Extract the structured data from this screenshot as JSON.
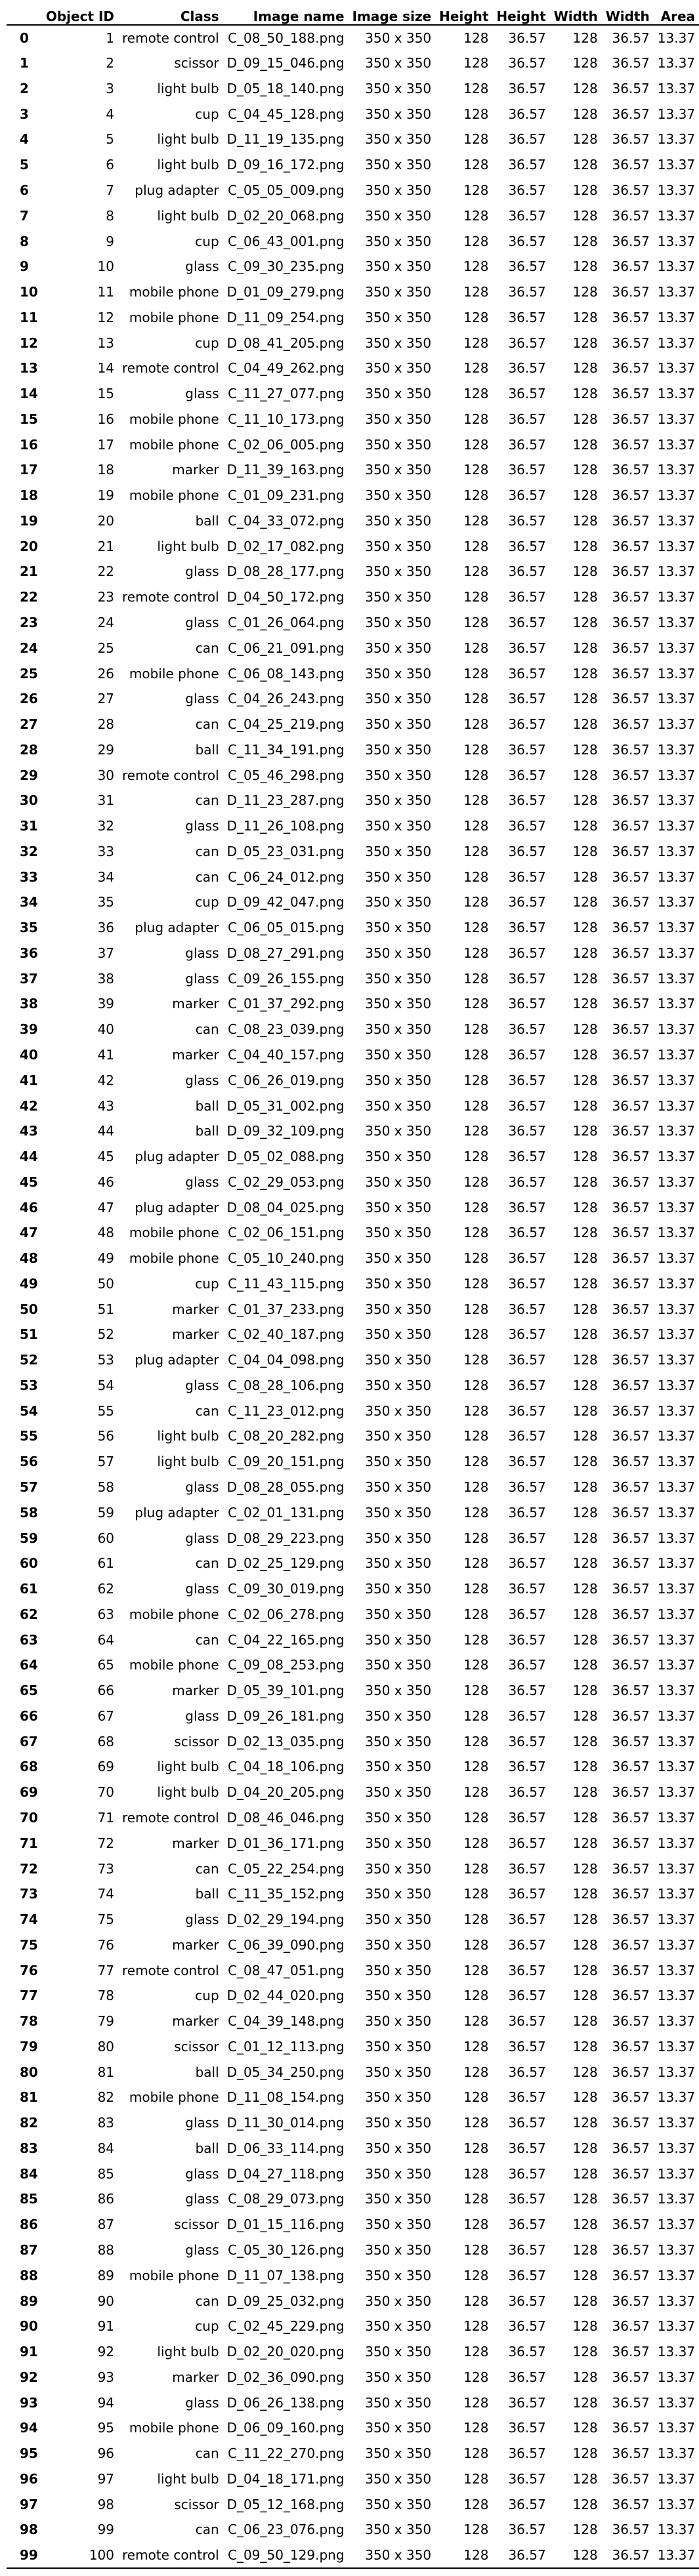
{
  "table": {
    "columns": [
      "",
      "Object ID",
      "Class",
      "Image name",
      "Image size",
      "Height",
      "Height",
      "Width",
      "Width",
      "Area"
    ],
    "rows": [
      [
        "0",
        "1",
        "remote control",
        "C_08_50_188.png",
        "350 x 350",
        "128",
        "36.57",
        "128",
        "36.57",
        "13.37"
      ],
      [
        "1",
        "2",
        "scissor",
        "D_09_15_046.png",
        "350 x 350",
        "128",
        "36.57",
        "128",
        "36.57",
        "13.37"
      ],
      [
        "2",
        "3",
        "light bulb",
        "D_05_18_140.png",
        "350 x 350",
        "128",
        "36.57",
        "128",
        "36.57",
        "13.37"
      ],
      [
        "3",
        "4",
        "cup",
        "C_04_45_128.png",
        "350 x 350",
        "128",
        "36.57",
        "128",
        "36.57",
        "13.37"
      ],
      [
        "4",
        "5",
        "light bulb",
        "D_11_19_135.png",
        "350 x 350",
        "128",
        "36.57",
        "128",
        "36.57",
        "13.37"
      ],
      [
        "5",
        "6",
        "light bulb",
        "D_09_16_172.png",
        "350 x 350",
        "128",
        "36.57",
        "128",
        "36.57",
        "13.37"
      ],
      [
        "6",
        "7",
        "plug adapter",
        "C_05_05_009.png",
        "350 x 350",
        "128",
        "36.57",
        "128",
        "36.57",
        "13.37"
      ],
      [
        "7",
        "8",
        "light bulb",
        "D_02_20_068.png",
        "350 x 350",
        "128",
        "36.57",
        "128",
        "36.57",
        "13.37"
      ],
      [
        "8",
        "9",
        "cup",
        "C_06_43_001.png",
        "350 x 350",
        "128",
        "36.57",
        "128",
        "36.57",
        "13.37"
      ],
      [
        "9",
        "10",
        "glass",
        "C_09_30_235.png",
        "350 x 350",
        "128",
        "36.57",
        "128",
        "36.57",
        "13.37"
      ],
      [
        "10",
        "11",
        "mobile phone",
        "D_01_09_279.png",
        "350 x 350",
        "128",
        "36.57",
        "128",
        "36.57",
        "13.37"
      ],
      [
        "11",
        "12",
        "mobile phone",
        "D_11_09_254.png",
        "350 x 350",
        "128",
        "36.57",
        "128",
        "36.57",
        "13.37"
      ],
      [
        "12",
        "13",
        "cup",
        "D_08_41_205.png",
        "350 x 350",
        "128",
        "36.57",
        "128",
        "36.57",
        "13.37"
      ],
      [
        "13",
        "14",
        "remote control",
        "C_04_49_262.png",
        "350 x 350",
        "128",
        "36.57",
        "128",
        "36.57",
        "13.37"
      ],
      [
        "14",
        "15",
        "glass",
        "C_11_27_077.png",
        "350 x 350",
        "128",
        "36.57",
        "128",
        "36.57",
        "13.37"
      ],
      [
        "15",
        "16",
        "mobile phone",
        "C_11_10_173.png",
        "350 x 350",
        "128",
        "36.57",
        "128",
        "36.57",
        "13.37"
      ],
      [
        "16",
        "17",
        "mobile phone",
        "C_02_06_005.png",
        "350 x 350",
        "128",
        "36.57",
        "128",
        "36.57",
        "13.37"
      ],
      [
        "17",
        "18",
        "marker",
        "D_11_39_163.png",
        "350 x 350",
        "128",
        "36.57",
        "128",
        "36.57",
        "13.37"
      ],
      [
        "18",
        "19",
        "mobile phone",
        "C_01_09_231.png",
        "350 x 350",
        "128",
        "36.57",
        "128",
        "36.57",
        "13.37"
      ],
      [
        "19",
        "20",
        "ball",
        "C_04_33_072.png",
        "350 x 350",
        "128",
        "36.57",
        "128",
        "36.57",
        "13.37"
      ],
      [
        "20",
        "21",
        "light bulb",
        "D_02_17_082.png",
        "350 x 350",
        "128",
        "36.57",
        "128",
        "36.57",
        "13.37"
      ],
      [
        "21",
        "22",
        "glass",
        "D_08_28_177.png",
        "350 x 350",
        "128",
        "36.57",
        "128",
        "36.57",
        "13.37"
      ],
      [
        "22",
        "23",
        "remote control",
        "D_04_50_172.png",
        "350 x 350",
        "128",
        "36.57",
        "128",
        "36.57",
        "13.37"
      ],
      [
        "23",
        "24",
        "glass",
        "C_01_26_064.png",
        "350 x 350",
        "128",
        "36.57",
        "128",
        "36.57",
        "13.37"
      ],
      [
        "24",
        "25",
        "can",
        "C_06_21_091.png",
        "350 x 350",
        "128",
        "36.57",
        "128",
        "36.57",
        "13.37"
      ],
      [
        "25",
        "26",
        "mobile phone",
        "C_06_08_143.png",
        "350 x 350",
        "128",
        "36.57",
        "128",
        "36.57",
        "13.37"
      ],
      [
        "26",
        "27",
        "glass",
        "C_04_26_243.png",
        "350 x 350",
        "128",
        "36.57",
        "128",
        "36.57",
        "13.37"
      ],
      [
        "27",
        "28",
        "can",
        "C_04_25_219.png",
        "350 x 350",
        "128",
        "36.57",
        "128",
        "36.57",
        "13.37"
      ],
      [
        "28",
        "29",
        "ball",
        "C_11_34_191.png",
        "350 x 350",
        "128",
        "36.57",
        "128",
        "36.57",
        "13.37"
      ],
      [
        "29",
        "30",
        "remote control",
        "C_05_46_298.png",
        "350 x 350",
        "128",
        "36.57",
        "128",
        "36.57",
        "13.37"
      ],
      [
        "30",
        "31",
        "can",
        "D_11_23_287.png",
        "350 x 350",
        "128",
        "36.57",
        "128",
        "36.57",
        "13.37"
      ],
      [
        "31",
        "32",
        "glass",
        "D_11_26_108.png",
        "350 x 350",
        "128",
        "36.57",
        "128",
        "36.57",
        "13.37"
      ],
      [
        "32",
        "33",
        "can",
        "D_05_23_031.png",
        "350 x 350",
        "128",
        "36.57",
        "128",
        "36.57",
        "13.37"
      ],
      [
        "33",
        "34",
        "can",
        "C_06_24_012.png",
        "350 x 350",
        "128",
        "36.57",
        "128",
        "36.57",
        "13.37"
      ],
      [
        "34",
        "35",
        "cup",
        "D_09_42_047.png",
        "350 x 350",
        "128",
        "36.57",
        "128",
        "36.57",
        "13.37"
      ],
      [
        "35",
        "36",
        "plug adapter",
        "C_06_05_015.png",
        "350 x 350",
        "128",
        "36.57",
        "128",
        "36.57",
        "13.37"
      ],
      [
        "36",
        "37",
        "glass",
        "D_08_27_291.png",
        "350 x 350",
        "128",
        "36.57",
        "128",
        "36.57",
        "13.37"
      ],
      [
        "37",
        "38",
        "glass",
        "C_09_26_155.png",
        "350 x 350",
        "128",
        "36.57",
        "128",
        "36.57",
        "13.37"
      ],
      [
        "38",
        "39",
        "marker",
        "C_01_37_292.png",
        "350 x 350",
        "128",
        "36.57",
        "128",
        "36.57",
        "13.37"
      ],
      [
        "39",
        "40",
        "can",
        "C_08_23_039.png",
        "350 x 350",
        "128",
        "36.57",
        "128",
        "36.57",
        "13.37"
      ],
      [
        "40",
        "41",
        "marker",
        "C_04_40_157.png",
        "350 x 350",
        "128",
        "36.57",
        "128",
        "36.57",
        "13.37"
      ],
      [
        "41",
        "42",
        "glass",
        "C_06_26_019.png",
        "350 x 350",
        "128",
        "36.57",
        "128",
        "36.57",
        "13.37"
      ],
      [
        "42",
        "43",
        "ball",
        "D_05_31_002.png",
        "350 x 350",
        "128",
        "36.57",
        "128",
        "36.57",
        "13.37"
      ],
      [
        "43",
        "44",
        "ball",
        "D_09_32_109.png",
        "350 x 350",
        "128",
        "36.57",
        "128",
        "36.57",
        "13.37"
      ],
      [
        "44",
        "45",
        "plug adapter",
        "D_05_02_088.png",
        "350 x 350",
        "128",
        "36.57",
        "128",
        "36.57",
        "13.37"
      ],
      [
        "45",
        "46",
        "glass",
        "C_02_29_053.png",
        "350 x 350",
        "128",
        "36.57",
        "128",
        "36.57",
        "13.37"
      ],
      [
        "46",
        "47",
        "plug adapter",
        "D_08_04_025.png",
        "350 x 350",
        "128",
        "36.57",
        "128",
        "36.57",
        "13.37"
      ],
      [
        "47",
        "48",
        "mobile phone",
        "C_02_06_151.png",
        "350 x 350",
        "128",
        "36.57",
        "128",
        "36.57",
        "13.37"
      ],
      [
        "48",
        "49",
        "mobile phone",
        "C_05_10_240.png",
        "350 x 350",
        "128",
        "36.57",
        "128",
        "36.57",
        "13.37"
      ],
      [
        "49",
        "50",
        "cup",
        "C_11_43_115.png",
        "350 x 350",
        "128",
        "36.57",
        "128",
        "36.57",
        "13.37"
      ],
      [
        "50",
        "51",
        "marker",
        "C_01_37_233.png",
        "350 x 350",
        "128",
        "36.57",
        "128",
        "36.57",
        "13.37"
      ],
      [
        "51",
        "52",
        "marker",
        "C_02_40_187.png",
        "350 x 350",
        "128",
        "36.57",
        "128",
        "36.57",
        "13.37"
      ],
      [
        "52",
        "53",
        "plug adapter",
        "C_04_04_098.png",
        "350 x 350",
        "128",
        "36.57",
        "128",
        "36.57",
        "13.37"
      ],
      [
        "53",
        "54",
        "glass",
        "C_08_28_106.png",
        "350 x 350",
        "128",
        "36.57",
        "128",
        "36.57",
        "13.37"
      ],
      [
        "54",
        "55",
        "can",
        "C_11_23_012.png",
        "350 x 350",
        "128",
        "36.57",
        "128",
        "36.57",
        "13.37"
      ],
      [
        "55",
        "56",
        "light bulb",
        "C_08_20_282.png",
        "350 x 350",
        "128",
        "36.57",
        "128",
        "36.57",
        "13.37"
      ],
      [
        "56",
        "57",
        "light bulb",
        "C_09_20_151.png",
        "350 x 350",
        "128",
        "36.57",
        "128",
        "36.57",
        "13.37"
      ],
      [
        "57",
        "58",
        "glass",
        "D_08_28_055.png",
        "350 x 350",
        "128",
        "36.57",
        "128",
        "36.57",
        "13.37"
      ],
      [
        "58",
        "59",
        "plug adapter",
        "C_02_01_131.png",
        "350 x 350",
        "128",
        "36.57",
        "128",
        "36.57",
        "13.37"
      ],
      [
        "59",
        "60",
        "glass",
        "D_08_29_223.png",
        "350 x 350",
        "128",
        "36.57",
        "128",
        "36.57",
        "13.37"
      ],
      [
        "60",
        "61",
        "can",
        "D_02_25_129.png",
        "350 x 350",
        "128",
        "36.57",
        "128",
        "36.57",
        "13.37"
      ],
      [
        "61",
        "62",
        "glass",
        "C_09_30_019.png",
        "350 x 350",
        "128",
        "36.57",
        "128",
        "36.57",
        "13.37"
      ],
      [
        "62",
        "63",
        "mobile phone",
        "C_02_06_278.png",
        "350 x 350",
        "128",
        "36.57",
        "128",
        "36.57",
        "13.37"
      ],
      [
        "63",
        "64",
        "can",
        "C_04_22_165.png",
        "350 x 350",
        "128",
        "36.57",
        "128",
        "36.57",
        "13.37"
      ],
      [
        "64",
        "65",
        "mobile phone",
        "C_09_08_253.png",
        "350 x 350",
        "128",
        "36.57",
        "128",
        "36.57",
        "13.37"
      ],
      [
        "65",
        "66",
        "marker",
        "D_05_39_101.png",
        "350 x 350",
        "128",
        "36.57",
        "128",
        "36.57",
        "13.37"
      ],
      [
        "66",
        "67",
        "glass",
        "D_09_26_181.png",
        "350 x 350",
        "128",
        "36.57",
        "128",
        "36.57",
        "13.37"
      ],
      [
        "67",
        "68",
        "scissor",
        "D_02_13_035.png",
        "350 x 350",
        "128",
        "36.57",
        "128",
        "36.57",
        "13.37"
      ],
      [
        "68",
        "69",
        "light bulb",
        "C_04_18_106.png",
        "350 x 350",
        "128",
        "36.57",
        "128",
        "36.57",
        "13.37"
      ],
      [
        "69",
        "70",
        "light bulb",
        "D_04_20_205.png",
        "350 x 350",
        "128",
        "36.57",
        "128",
        "36.57",
        "13.37"
      ],
      [
        "70",
        "71",
        "remote control",
        "D_08_46_046.png",
        "350 x 350",
        "128",
        "36.57",
        "128",
        "36.57",
        "13.37"
      ],
      [
        "71",
        "72",
        "marker",
        "D_01_36_171.png",
        "350 x 350",
        "128",
        "36.57",
        "128",
        "36.57",
        "13.37"
      ],
      [
        "72",
        "73",
        "can",
        "C_05_22_254.png",
        "350 x 350",
        "128",
        "36.57",
        "128",
        "36.57",
        "13.37"
      ],
      [
        "73",
        "74",
        "ball",
        "C_11_35_152.png",
        "350 x 350",
        "128",
        "36.57",
        "128",
        "36.57",
        "13.37"
      ],
      [
        "74",
        "75",
        "glass",
        "D_02_29_194.png",
        "350 x 350",
        "128",
        "36.57",
        "128",
        "36.57",
        "13.37"
      ],
      [
        "75",
        "76",
        "marker",
        "C_06_39_090.png",
        "350 x 350",
        "128",
        "36.57",
        "128",
        "36.57",
        "13.37"
      ],
      [
        "76",
        "77",
        "remote control",
        "C_08_47_051.png",
        "350 x 350",
        "128",
        "36.57",
        "128",
        "36.57",
        "13.37"
      ],
      [
        "77",
        "78",
        "cup",
        "D_02_44_020.png",
        "350 x 350",
        "128",
        "36.57",
        "128",
        "36.57",
        "13.37"
      ],
      [
        "78",
        "79",
        "marker",
        "C_04_39_148.png",
        "350 x 350",
        "128",
        "36.57",
        "128",
        "36.57",
        "13.37"
      ],
      [
        "79",
        "80",
        "scissor",
        "C_01_12_113.png",
        "350 x 350",
        "128",
        "36.57",
        "128",
        "36.57",
        "13.37"
      ],
      [
        "80",
        "81",
        "ball",
        "D_05_34_250.png",
        "350 x 350",
        "128",
        "36.57",
        "128",
        "36.57",
        "13.37"
      ],
      [
        "81",
        "82",
        "mobile phone",
        "D_11_08_154.png",
        "350 x 350",
        "128",
        "36.57",
        "128",
        "36.57",
        "13.37"
      ],
      [
        "82",
        "83",
        "glass",
        "D_11_30_014.png",
        "350 x 350",
        "128",
        "36.57",
        "128",
        "36.57",
        "13.37"
      ],
      [
        "83",
        "84",
        "ball",
        "D_06_33_114.png",
        "350 x 350",
        "128",
        "36.57",
        "128",
        "36.57",
        "13.37"
      ],
      [
        "84",
        "85",
        "glass",
        "D_04_27_118.png",
        "350 x 350",
        "128",
        "36.57",
        "128",
        "36.57",
        "13.37"
      ],
      [
        "85",
        "86",
        "glass",
        "C_08_29_073.png",
        "350 x 350",
        "128",
        "36.57",
        "128",
        "36.57",
        "13.37"
      ],
      [
        "86",
        "87",
        "scissor",
        "D_01_15_116.png",
        "350 x 350",
        "128",
        "36.57",
        "128",
        "36.57",
        "13.37"
      ],
      [
        "87",
        "88",
        "glass",
        "C_05_30_126.png",
        "350 x 350",
        "128",
        "36.57",
        "128",
        "36.57",
        "13.37"
      ],
      [
        "88",
        "89",
        "mobile phone",
        "D_11_07_138.png",
        "350 x 350",
        "128",
        "36.57",
        "128",
        "36.57",
        "13.37"
      ],
      [
        "89",
        "90",
        "can",
        "D_09_25_032.png",
        "350 x 350",
        "128",
        "36.57",
        "128",
        "36.57",
        "13.37"
      ],
      [
        "90",
        "91",
        "cup",
        "C_02_45_229.png",
        "350 x 350",
        "128",
        "36.57",
        "128",
        "36.57",
        "13.37"
      ],
      [
        "91",
        "92",
        "light bulb",
        "D_02_20_020.png",
        "350 x 350",
        "128",
        "36.57",
        "128",
        "36.57",
        "13.37"
      ],
      [
        "92",
        "93",
        "marker",
        "D_02_36_090.png",
        "350 x 350",
        "128",
        "36.57",
        "128",
        "36.57",
        "13.37"
      ],
      [
        "93",
        "94",
        "glass",
        "D_06_26_138.png",
        "350 x 350",
        "128",
        "36.57",
        "128",
        "36.57",
        "13.37"
      ],
      [
        "94",
        "95",
        "mobile phone",
        "D_06_09_160.png",
        "350 x 350",
        "128",
        "36.57",
        "128",
        "36.57",
        "13.37"
      ],
      [
        "95",
        "96",
        "can",
        "C_11_22_270.png",
        "350 x 350",
        "128",
        "36.57",
        "128",
        "36.57",
        "13.37"
      ],
      [
        "96",
        "97",
        "light bulb",
        "D_04_18_171.png",
        "350 x 350",
        "128",
        "36.57",
        "128",
        "36.57",
        "13.37"
      ],
      [
        "97",
        "98",
        "scissor",
        "D_05_12_168.png",
        "350 x 350",
        "128",
        "36.57",
        "128",
        "36.57",
        "13.37"
      ],
      [
        "98",
        "99",
        "can",
        "C_06_23_076.png",
        "350 x 350",
        "128",
        "36.57",
        "128",
        "36.57",
        "13.37"
      ],
      [
        "99",
        "100",
        "remote control",
        "C_09_50_129.png",
        "350 x 350",
        "128",
        "36.57",
        "128",
        "36.57",
        "13.37"
      ]
    ]
  }
}
